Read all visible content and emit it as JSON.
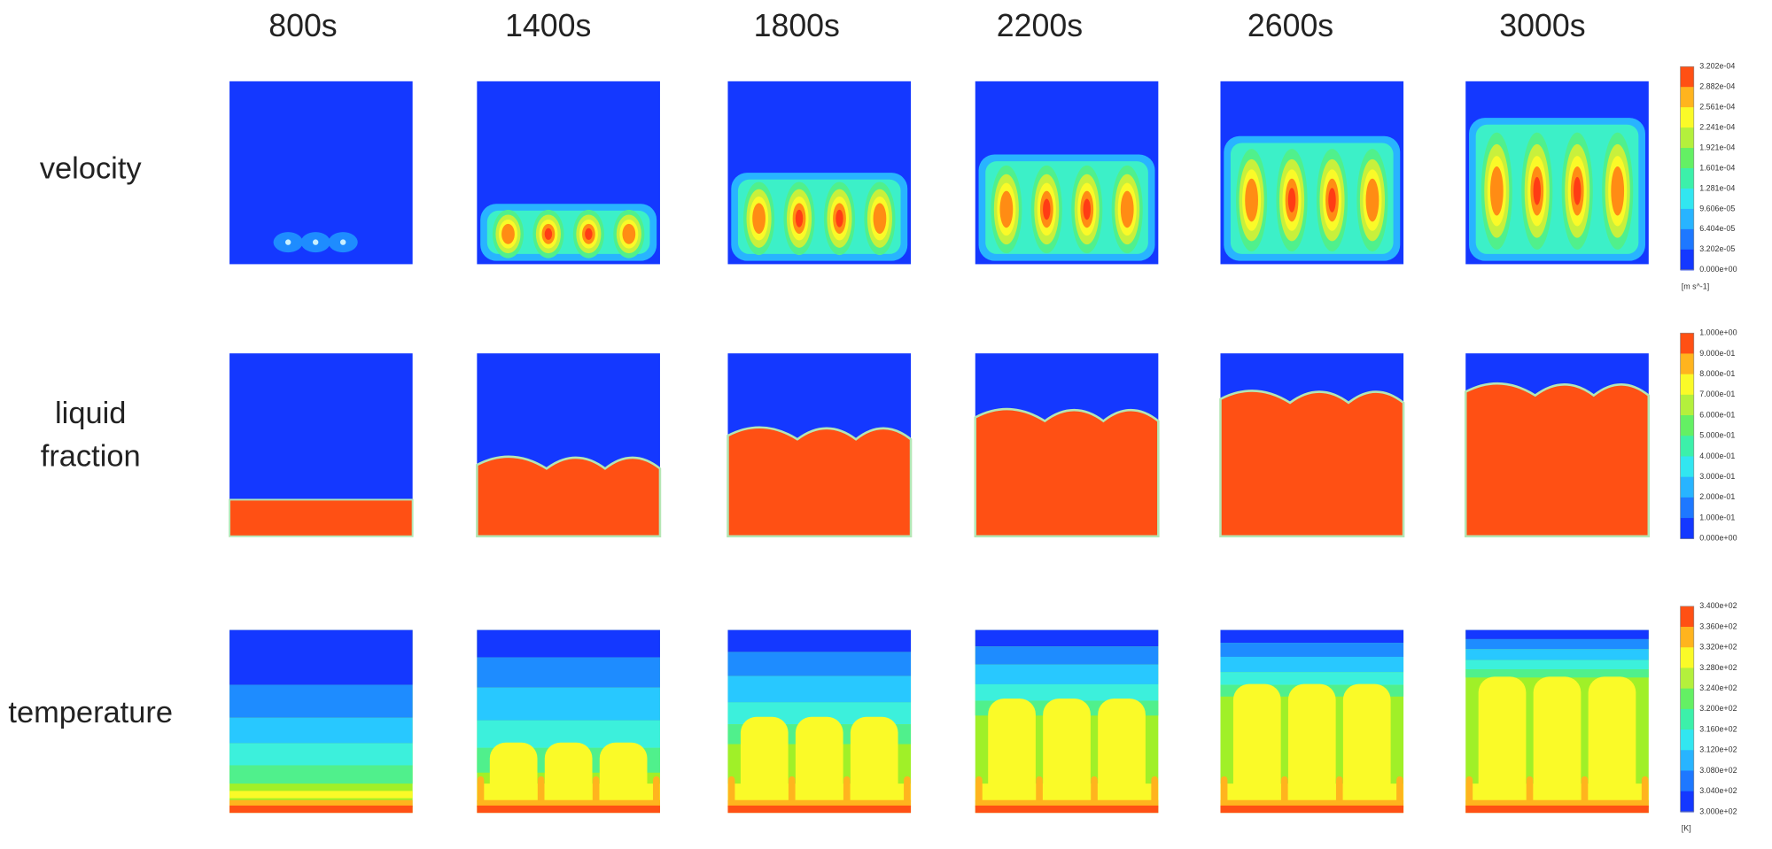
{
  "columns": [
    "800s",
    "1400s",
    "1800s",
    "2200s",
    "2600s",
    "3000s"
  ],
  "rows": [
    {
      "label_lines": [
        "velocity"
      ],
      "colorbar": {
        "labels": [
          "3.202e-04",
          "2.882e-04",
          "2.561e-04",
          "2.241e-04",
          "1.921e-04",
          "1.601e-04",
          "1.281e-04",
          "9.606e-05",
          "6.404e-05",
          "3.202e-05",
          "0.000e+00"
        ],
        "unit": "[m s^-1]"
      }
    },
    {
      "label_lines": [
        "liquid",
        "fraction"
      ],
      "colorbar": {
        "labels": [
          "1.000e+00",
          "9.000e-01",
          "8.000e-01",
          "7.000e-01",
          "6.000e-01",
          "5.000e-01",
          "4.000e-01",
          "3.000e-01",
          "2.000e-01",
          "1.000e-01",
          "0.000e+00"
        ]
      }
    },
    {
      "label_lines": [
        "temperature"
      ],
      "colorbar": {
        "labels": [
          "3.400e+02",
          "3.360e+02",
          "3.320e+02",
          "3.280e+02",
          "3.240e+02",
          "3.200e+02",
          "3.160e+02",
          "3.120e+02",
          "3.080e+02",
          "3.040e+02",
          "3.000e+02"
        ],
        "unit": "[K]"
      }
    }
  ]
}
